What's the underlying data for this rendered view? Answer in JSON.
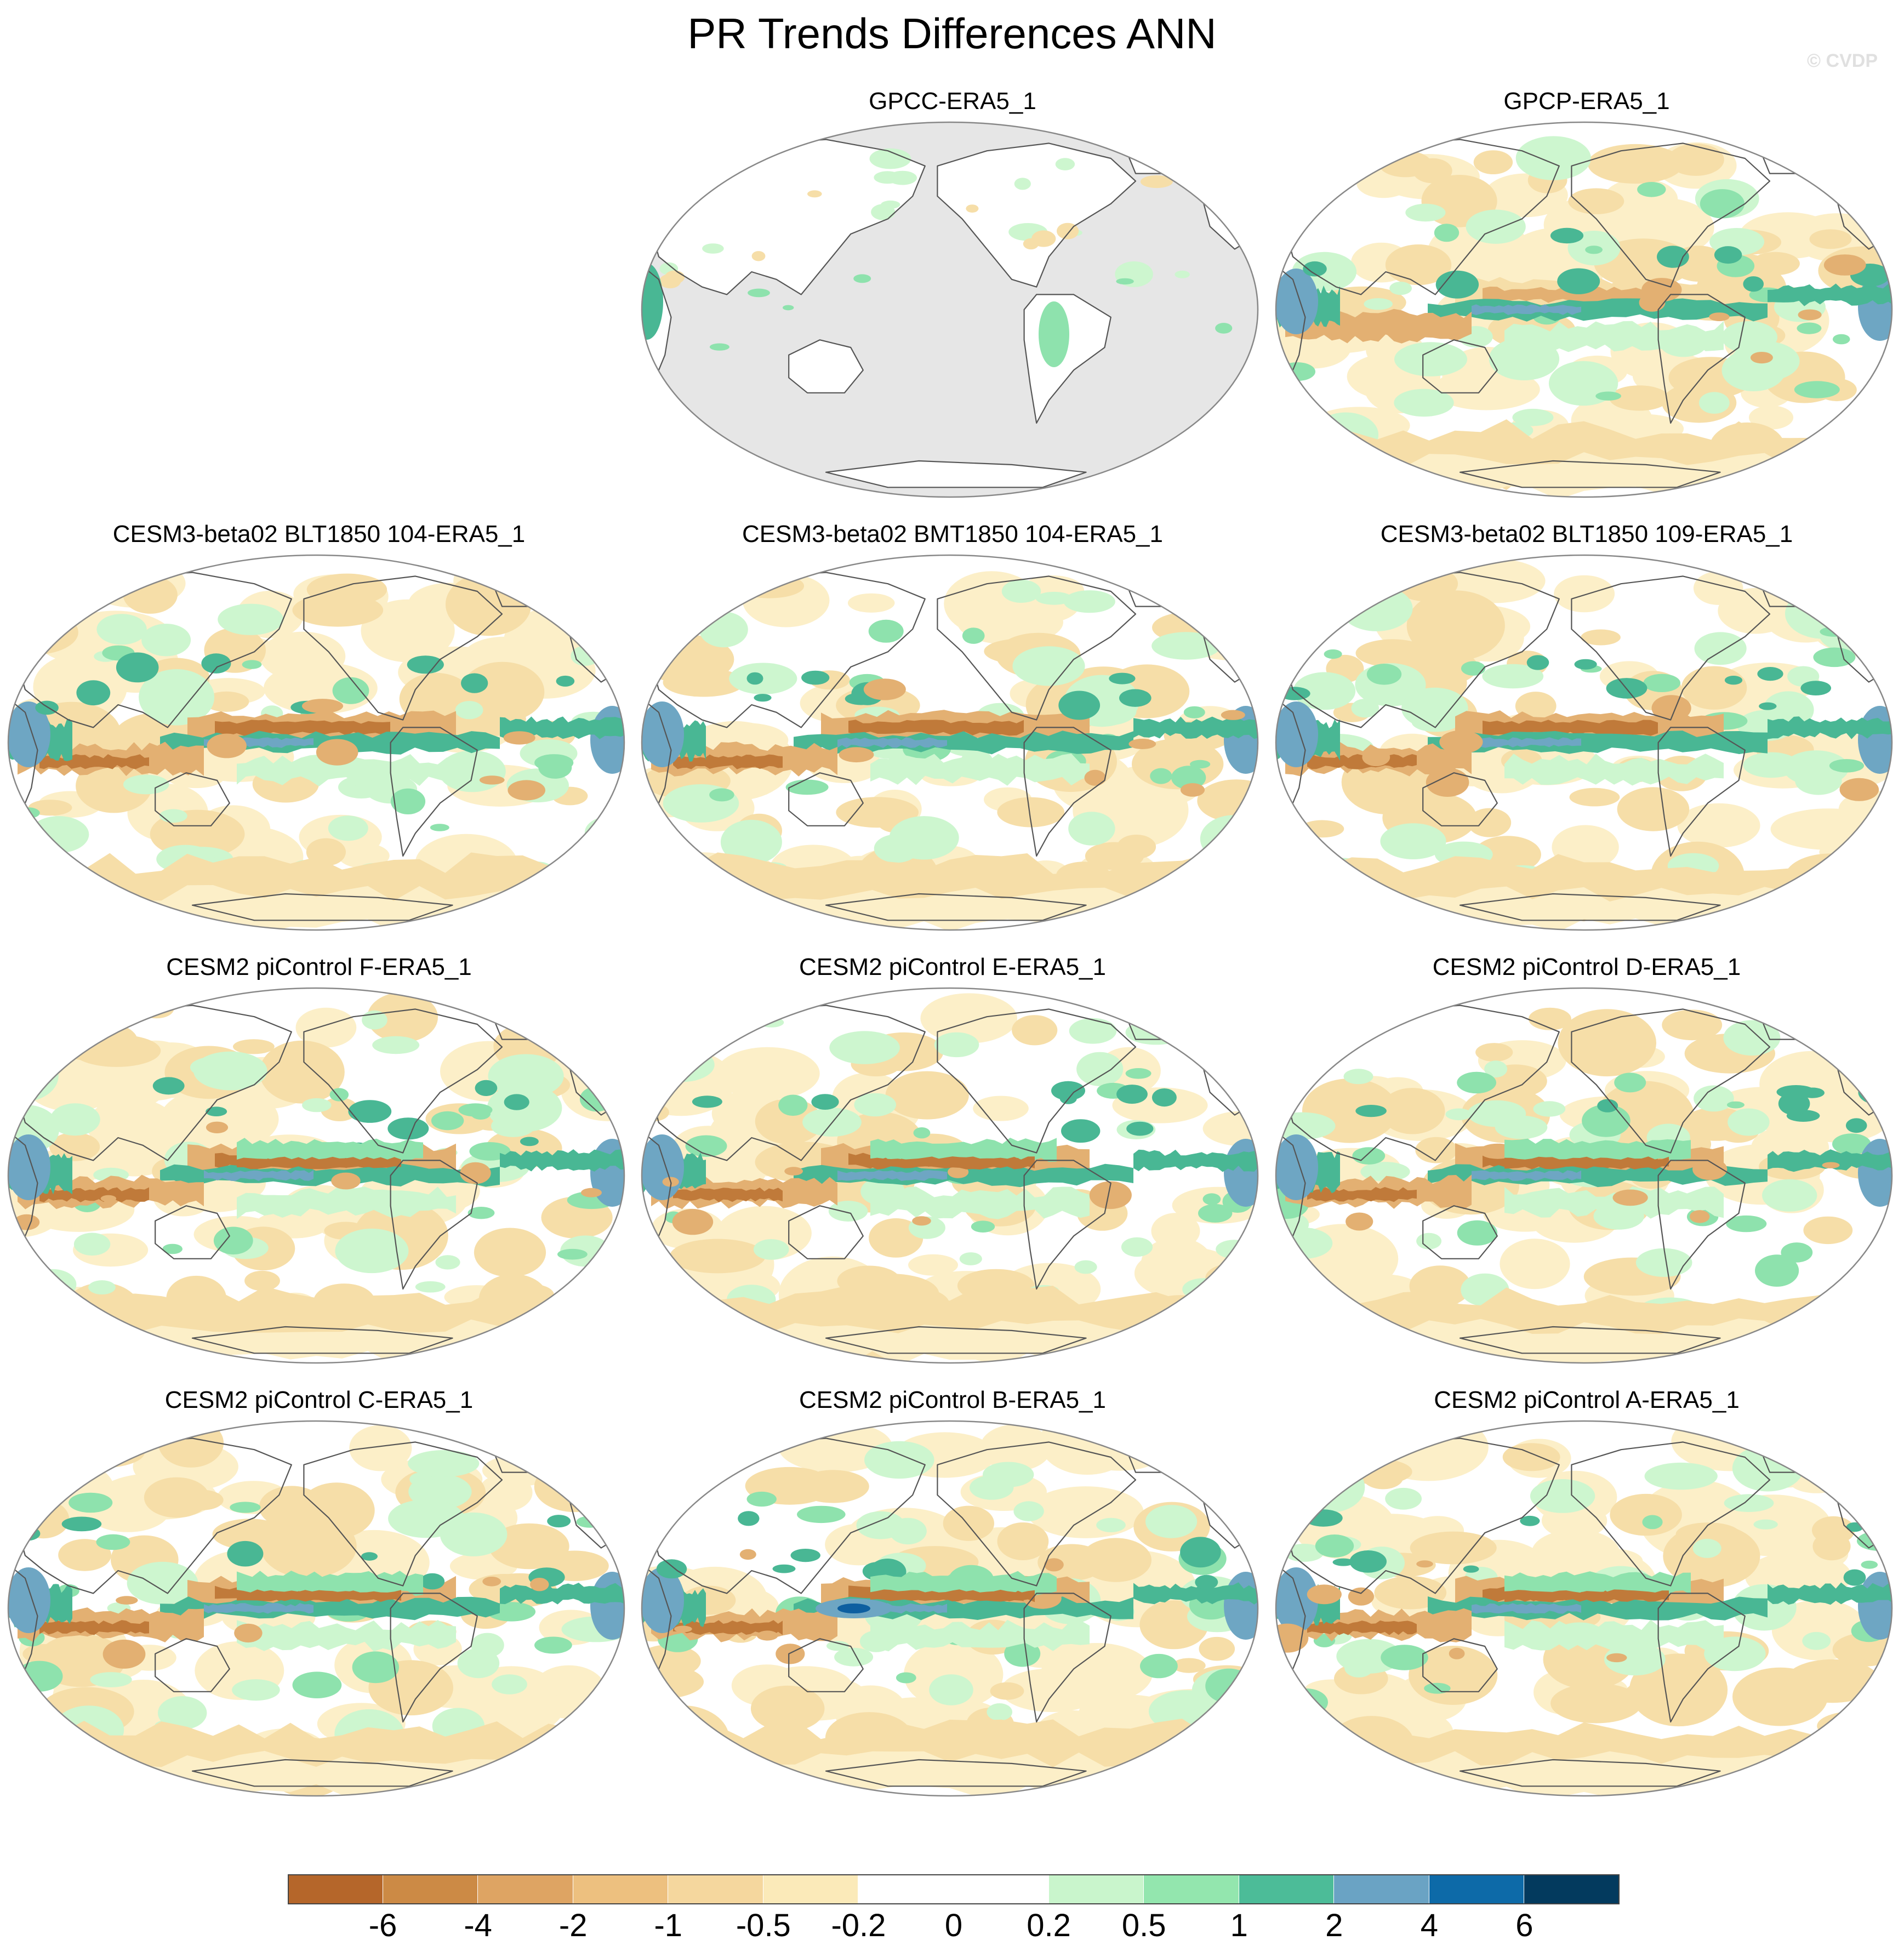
{
  "title": "PR Trends Differences ANN",
  "copyright": "© CVDP",
  "panels": [
    {
      "name": "GPCC-ERA5_1",
      "style": "land-only"
    },
    {
      "name": "GPCP-ERA5_1",
      "style": "ocean-weak"
    },
    {
      "name": "CESM3-beta02 BLT1850 104-ERA5_1",
      "style": "model"
    },
    {
      "name": "CESM3-beta02 BMT1850 104-ERA5_1",
      "style": "model"
    },
    {
      "name": "CESM3-beta02 BLT1850 109-ERA5_1",
      "style": "model"
    },
    {
      "name": "CESM2 piControl F-ERA5_1",
      "style": "model-strong"
    },
    {
      "name": "CESM2 piControl E-ERA5_1",
      "style": "model-strong"
    },
    {
      "name": "CESM2 piControl D-ERA5_1",
      "style": "model-strong"
    },
    {
      "name": "CESM2 piControl C-ERA5_1",
      "style": "model-strong"
    },
    {
      "name": "CESM2 piControl B-ERA5_1",
      "style": "model-blue"
    },
    {
      "name": "CESM2 piControl A-ERA5_1",
      "style": "model-strong"
    }
  ],
  "colorbar": {
    "labels": [
      "-6",
      "-4",
      "-2",
      "-1",
      "-0.5",
      "-0.2",
      "0",
      "0.2",
      "0.5",
      "1",
      "2",
      "4",
      "6"
    ],
    "colors": [
      "#b5662a",
      "#cc8a45",
      "#dea463",
      "#edc07f",
      "#f5d79e",
      "#fbeab9",
      "#ffffff",
      "#ffffff",
      "#c9f5cc",
      "#93e6ae",
      "#4cbc98",
      "#6aa3c4",
      "#0d6aa8",
      "#033a5e"
    ]
  },
  "map_colors": {
    "land_fill": "#e6e6e6",
    "coast": "#555555",
    "frame": "#888888",
    "dry_strong": "#c07a3a",
    "dry_mid": "#e3b072",
    "dry_light": "#f6dea8",
    "dry_faint": "#fcefc8",
    "wet_faint": "#cdf6cf",
    "wet_mid": "#8ee2ad",
    "wet_strong": "#49b794",
    "wet_blue": "#6ea6c3",
    "wet_deep": "#0d5fa0"
  }
}
